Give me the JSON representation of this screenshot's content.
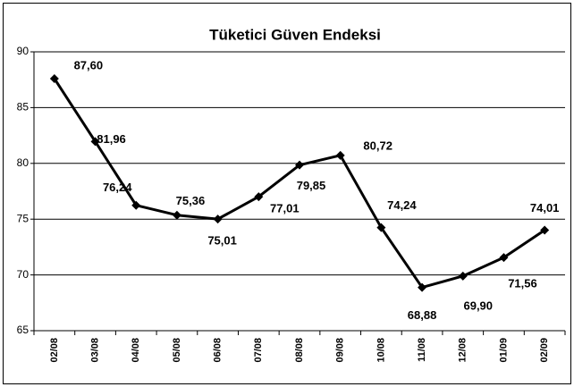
{
  "chart_data": {
    "type": "line",
    "title": "Tüketici Güven Endeksi",
    "categories": [
      "02/08",
      "03/08",
      "04/08",
      "05/08",
      "06/08",
      "07/08",
      "08/08",
      "09/08",
      "10/08",
      "11/08",
      "12/08",
      "01/09",
      "02/09"
    ],
    "values": [
      87.6,
      81.96,
      76.24,
      75.36,
      75.01,
      77.01,
      79.85,
      80.72,
      74.24,
      68.88,
      69.9,
      71.56,
      74.01
    ],
    "value_labels": [
      "87,60",
      "81,96",
      "76,24",
      "75,36",
      "75,01",
      "77,01",
      "79,85",
      "80,72",
      "74,24",
      "68,88",
      "69,90",
      "71,56",
      "74,01"
    ],
    "color": "#000000",
    "ylim": [
      65,
      90
    ],
    "yticks": [
      65,
      70,
      75,
      80,
      85,
      90
    ],
    "grid": true
  }
}
